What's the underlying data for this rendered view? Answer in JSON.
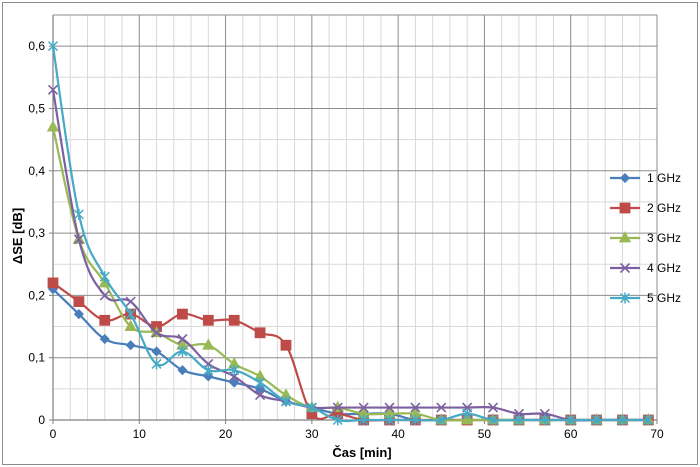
{
  "chart_data": {
    "type": "line",
    "title": "",
    "xlabel": "Čas [min]",
    "ylabel": "ΔSE [dB]",
    "xlim": [
      0,
      70
    ],
    "ylim": [
      0,
      0.65
    ],
    "x_major_ticks": [
      0,
      10,
      20,
      30,
      40,
      50,
      60,
      70
    ],
    "x_minor_step": 2,
    "y_major_ticks": [
      0,
      0.1,
      0.2,
      0.3,
      0.4,
      0.5,
      0.6
    ],
    "y_tick_labels": [
      "0",
      "0,1",
      "0,2",
      "0,3",
      "0,4",
      "0,5",
      "0,6"
    ],
    "y_minor_step": 0.05,
    "grid": true,
    "legend_position": "right",
    "x": [
      0,
      3,
      6,
      9,
      12,
      15,
      18,
      21,
      24,
      27,
      30,
      33,
      36,
      39,
      42,
      45,
      48,
      51,
      54,
      57,
      60,
      63,
      66,
      69
    ],
    "series": [
      {
        "name": "1 GHz",
        "color": "#4a7ebb",
        "marker": "diamond",
        "values": [
          0.21,
          0.17,
          0.13,
          0.12,
          0.11,
          0.08,
          0.07,
          0.06,
          0.05,
          0.03,
          0.02,
          0.01,
          0.01,
          0.01,
          0.0,
          0.0,
          0.0,
          0.0,
          0.0,
          0.0,
          0.0,
          0.0,
          0.0,
          0.0
        ]
      },
      {
        "name": "2 GHz",
        "color": "#be4b48",
        "marker": "square",
        "values": [
          0.22,
          0.19,
          0.16,
          0.17,
          0.15,
          0.17,
          0.16,
          0.16,
          0.14,
          0.12,
          0.01,
          0.01,
          0.0,
          0.0,
          0.0,
          0.0,
          0.0,
          0.0,
          0.0,
          0.0,
          0.0,
          0.0,
          0.0,
          0.0
        ]
      },
      {
        "name": "3 GHz",
        "color": "#98b954",
        "marker": "triangle",
        "values": [
          0.47,
          0.29,
          0.22,
          0.15,
          0.14,
          0.12,
          0.12,
          0.09,
          0.07,
          0.04,
          0.02,
          0.02,
          0.01,
          0.01,
          0.01,
          0.0,
          0.0,
          0.0,
          0.0,
          0.0,
          0.0,
          0.0,
          0.0,
          0.0
        ]
      },
      {
        "name": "4 GHz",
        "color": "#7d60a0",
        "marker": "x",
        "values": [
          0.53,
          0.29,
          0.2,
          0.19,
          0.14,
          0.13,
          0.09,
          0.07,
          0.04,
          0.03,
          0.02,
          0.02,
          0.02,
          0.02,
          0.02,
          0.02,
          0.02,
          0.02,
          0.01,
          0.01,
          0.0,
          0.0,
          0.0,
          0.0
        ]
      },
      {
        "name": "5 GHz",
        "color": "#46aac5",
        "marker": "star",
        "values": [
          0.6,
          0.33,
          0.23,
          0.17,
          0.09,
          0.11,
          0.08,
          0.08,
          0.06,
          0.03,
          0.02,
          0.0,
          0.0,
          0.0,
          0.0,
          0.0,
          0.01,
          0.0,
          0.0,
          0.0,
          0.0,
          0.0,
          0.0,
          0.0
        ]
      }
    ]
  }
}
